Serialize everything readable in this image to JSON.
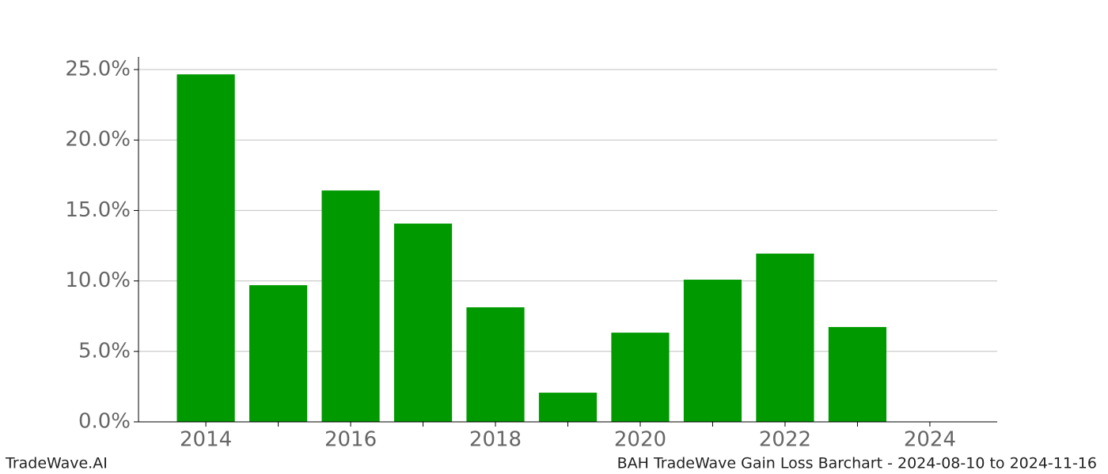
{
  "chart_data": {
    "type": "bar",
    "x": [
      2014,
      2015,
      2016,
      2017,
      2018,
      2019,
      2020,
      2021,
      2022,
      2023
    ],
    "values": [
      24.66,
      9.7,
      16.42,
      14.07,
      8.13,
      2.07,
      6.33,
      10.09,
      11.94,
      6.73
    ],
    "color": "#009900",
    "xlim": [
      2013.07,
      2024.93
    ],
    "xticks": [
      2014,
      2016,
      2018,
      2020,
      2022,
      2024
    ],
    "xminorticks": [
      2015,
      2017,
      2019,
      2021,
      2023
    ],
    "ylim": [
      0,
      25.9
    ],
    "yticks": [
      {
        "value": 0,
        "label": "0.0%"
      },
      {
        "value": 5,
        "label": "5.0%"
      },
      {
        "value": 10,
        "label": "10.0%"
      },
      {
        "value": 15,
        "label": "15.0%"
      },
      {
        "value": 20,
        "label": "20.0%"
      },
      {
        "value": 25,
        "label": "25.0%"
      }
    ],
    "grid": true
  },
  "footer": {
    "left": "TradeWave.AI",
    "right": "BAH TradeWave Gain Loss Barchart - 2024-08-10 to 2024-11-16"
  }
}
